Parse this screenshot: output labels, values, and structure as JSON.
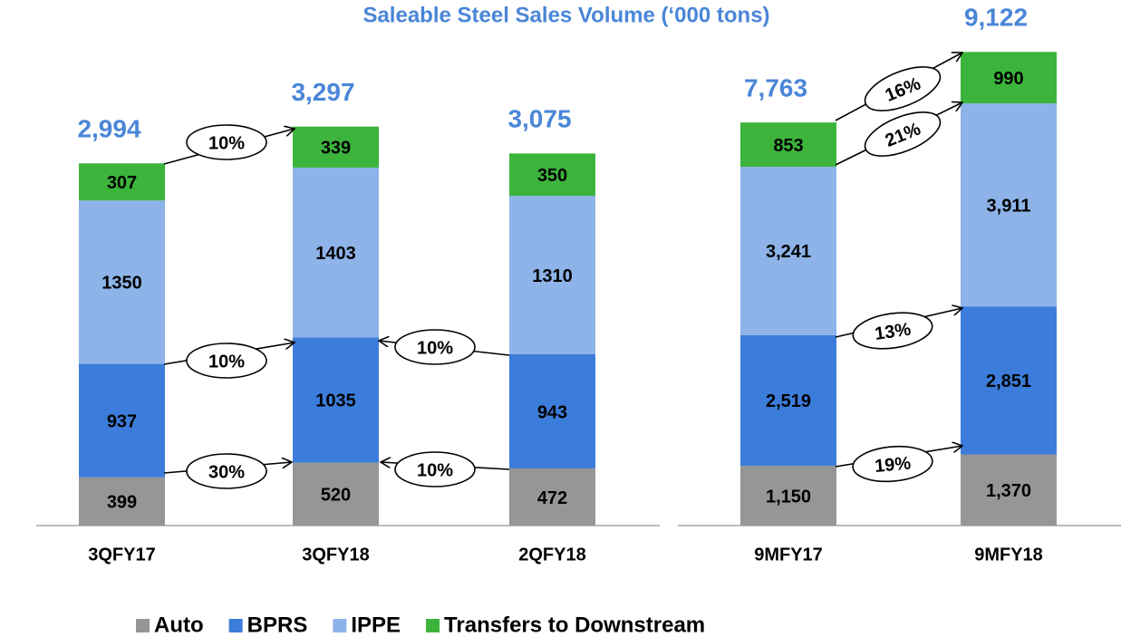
{
  "title": "Saleable Steel Sales Volume (‘000 tons)",
  "chart_data": [
    {
      "type": "bar",
      "stacked": true,
      "categories": [
        "3QFY17",
        "3QFY18",
        "2QFY18"
      ],
      "series": [
        {
          "name": "Auto",
          "color": "#969696",
          "values": [
            399,
            520,
            472
          ]
        },
        {
          "name": "BPRS",
          "color": "#3c7ddb",
          "values": [
            937,
            1035,
            943
          ]
        },
        {
          "name": "IPPE",
          "color": "#8db3e8",
          "values": [
            1350,
            1403,
            1310
          ]
        },
        {
          "name": "Transfers to Downstream",
          "color": "#3cb43c",
          "values": [
            307,
            339,
            350
          ]
        }
      ],
      "totals": [
        2994,
        3297,
        3075
      ],
      "total_labels": [
        "2,994",
        "3,297",
        "3,075"
      ],
      "ylim": [
        0,
        3500
      ]
    },
    {
      "type": "bar",
      "stacked": true,
      "categories": [
        "9MFY17",
        "9MFY18"
      ],
      "series": [
        {
          "name": "Auto",
          "color": "#969696",
          "values": [
            1150,
            1370
          ],
          "value_labels": [
            "1,150",
            "1,370"
          ]
        },
        {
          "name": "BPRS",
          "color": "#3c7ddb",
          "values": [
            2519,
            2851
          ],
          "value_labels": [
            "2,519",
            "2,851"
          ]
        },
        {
          "name": "IPPE",
          "color": "#8db3e8",
          "values": [
            3241,
            3911
          ],
          "value_labels": [
            "3,241",
            "3,911"
          ]
        },
        {
          "name": "Transfers to Downstream",
          "color": "#3cb43c",
          "values": [
            853,
            990
          ]
        }
      ],
      "totals": [
        7763,
        9122
      ],
      "total_labels": [
        "7,763",
        "9,122"
      ],
      "ylim": [
        0,
        10000
      ]
    }
  ],
  "annotations": [
    "10%",
    "10%",
    "30%",
    "10%",
    "10%",
    "16%",
    "21%",
    "13%",
    "19%"
  ]
}
